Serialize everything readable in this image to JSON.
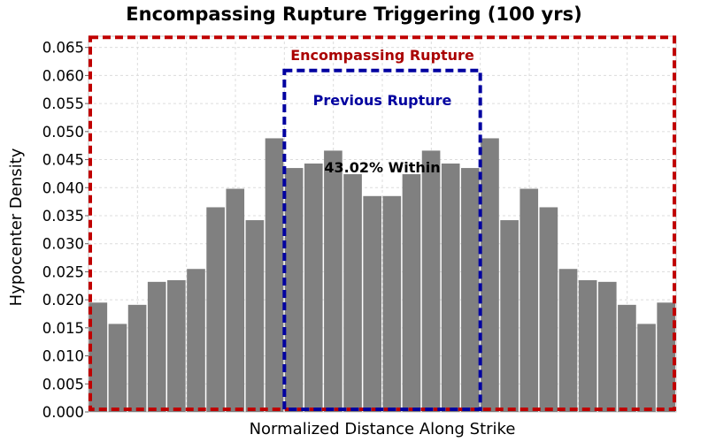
{
  "chart_data": {
    "type": "bar",
    "title": "Encompassing Rupture Triggering (100 yrs)",
    "xlabel": "Normalized Distance Along Strike",
    "ylabel": "Hypocenter Density",
    "ylim": [
      0,
      0.067
    ],
    "yticks": [
      "0.000",
      "0.005",
      "0.010",
      "0.015",
      "0.020",
      "0.025",
      "0.030",
      "0.035",
      "0.040",
      "0.045",
      "0.050",
      "0.055",
      "0.060",
      "0.065"
    ],
    "grid": true,
    "bar_color": "#808080",
    "values": [
      0.0195,
      0.0157,
      0.0191,
      0.0232,
      0.0235,
      0.0255,
      0.0365,
      0.0398,
      0.0342,
      0.0488,
      0.0435,
      0.0443,
      0.0466,
      0.0424,
      0.0385,
      0.0385,
      0.0424,
      0.0466,
      0.0443,
      0.0435,
      0.0488,
      0.0342,
      0.0398,
      0.0365,
      0.0255,
      0.0235,
      0.0232,
      0.0191,
      0.0157,
      0.0195
    ],
    "annotations": [
      {
        "text": "Encompassing Rupture",
        "color": "#aa0000"
      },
      {
        "text": "Previous Rupture",
        "color": "#00009f"
      },
      {
        "text": "43.02% Within",
        "color": "#000000"
      }
    ],
    "encompassing_box": {
      "x_range": [
        0,
        30
      ],
      "y_top": 0.0668,
      "color": "#c00000"
    },
    "previous_box": {
      "x_range": [
        10,
        20
      ],
      "y_top": 0.0609,
      "color": "#0000a0"
    }
  }
}
